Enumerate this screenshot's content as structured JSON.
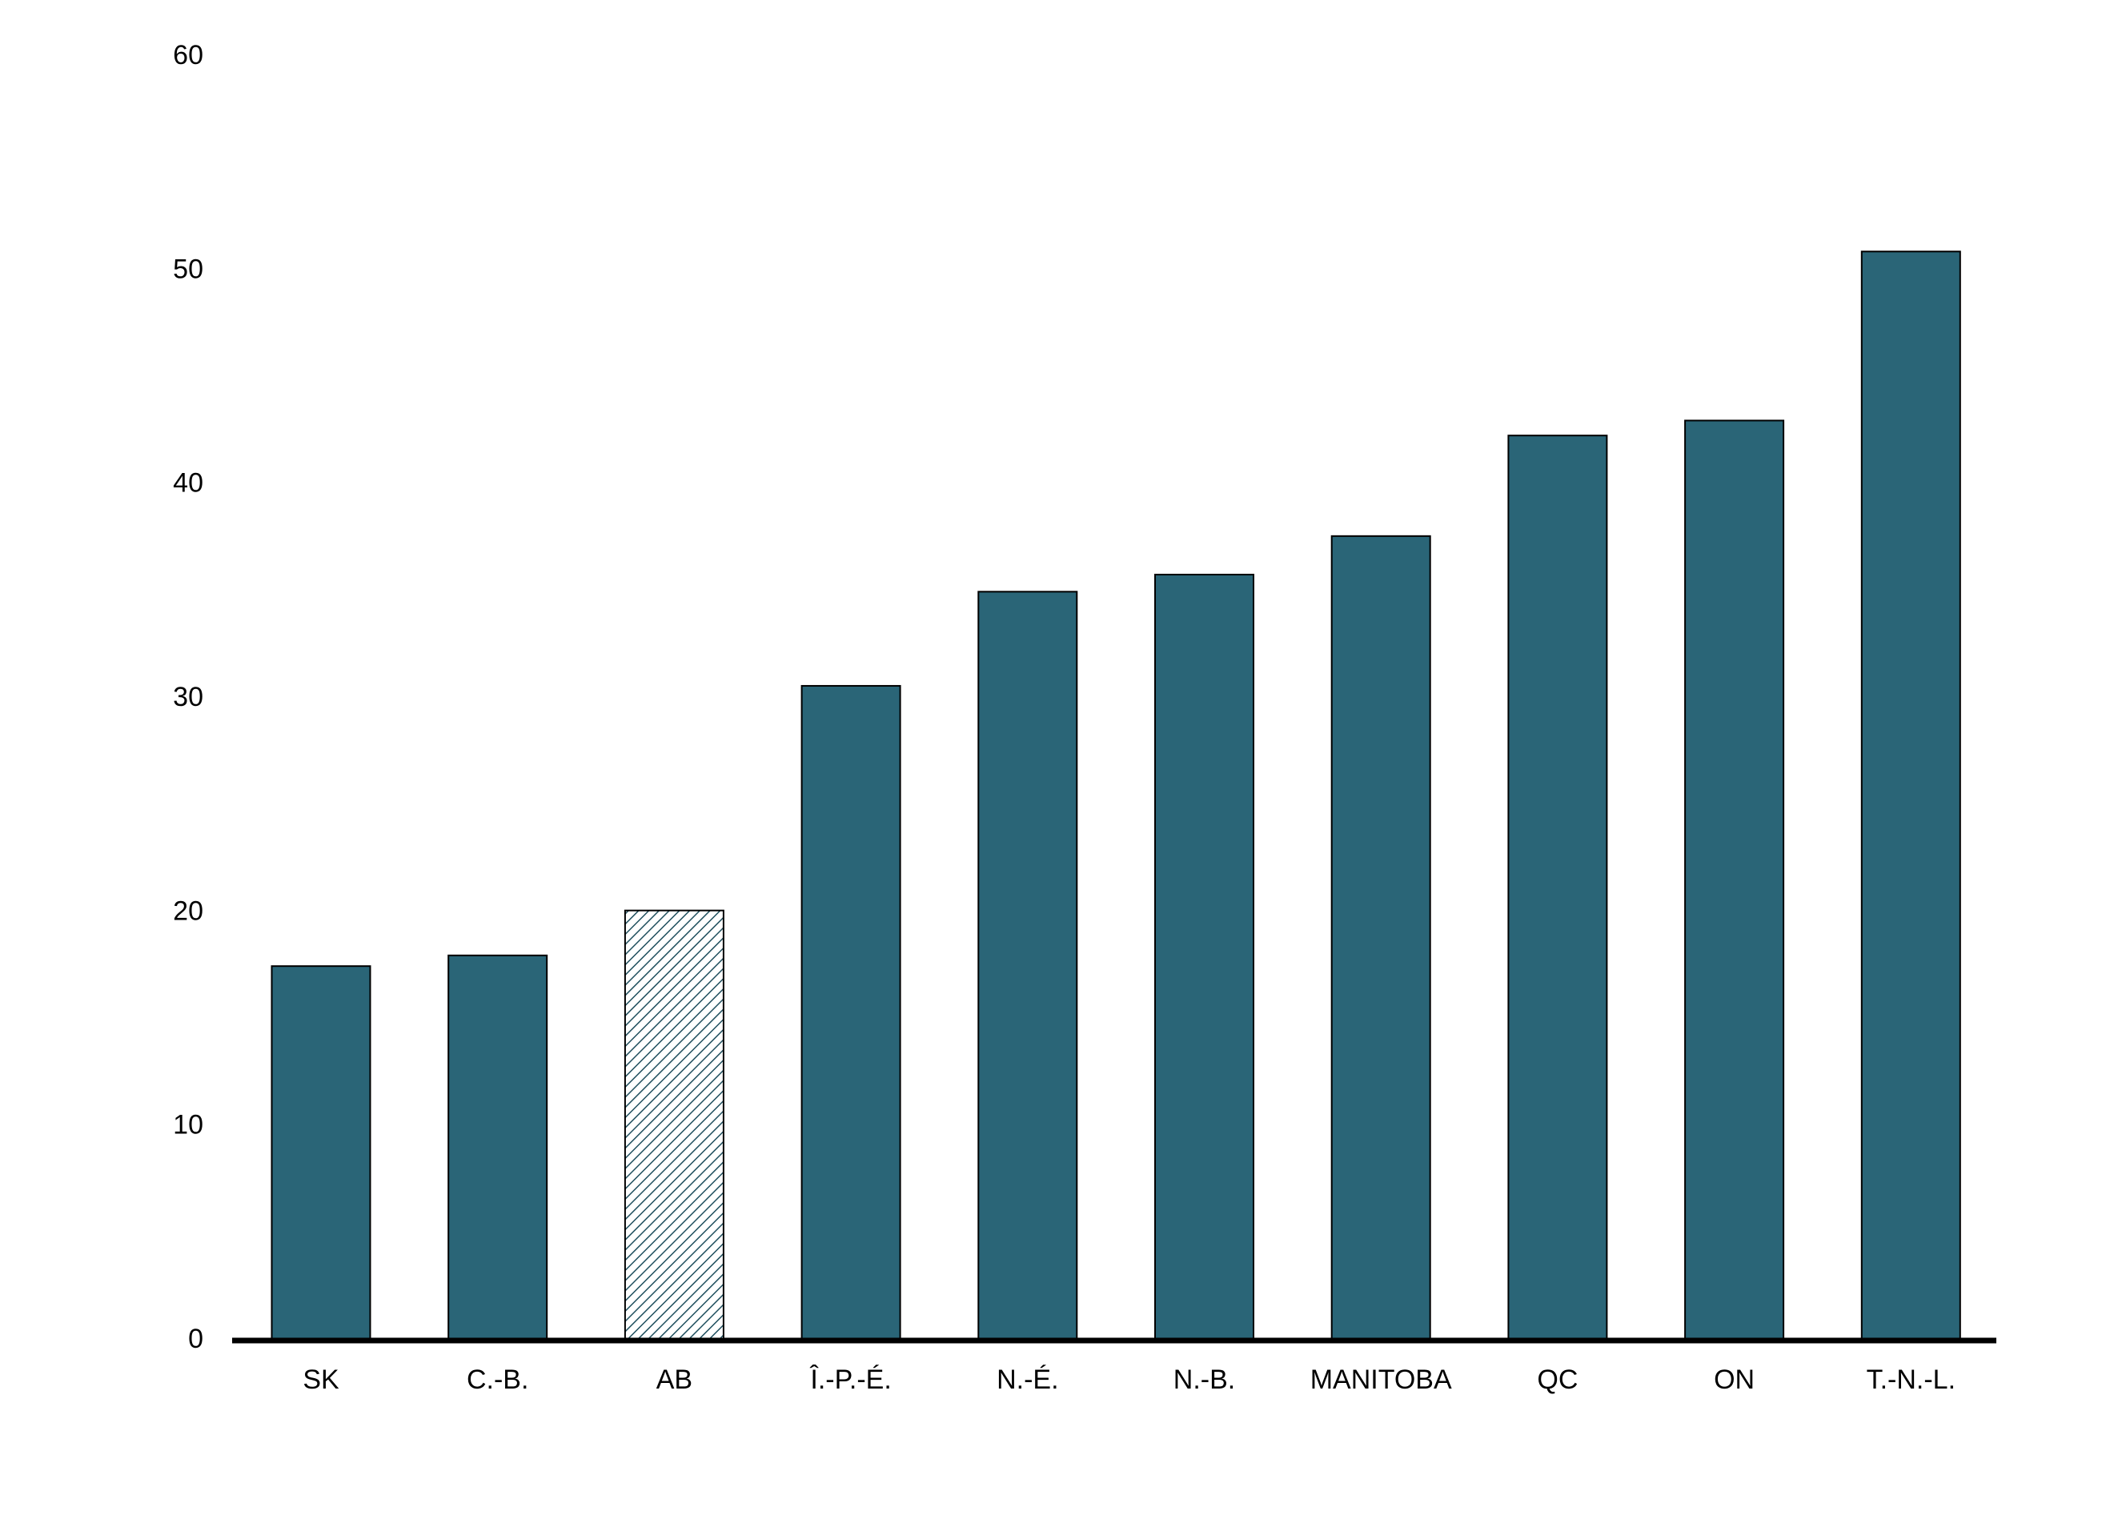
{
  "chart_data": {
    "type": "bar",
    "categories": [
      "SK",
      "C.-B.",
      "AB",
      "Î.-P.-É.",
      "N.-É.",
      "N.-B.",
      "MANITOBA",
      "QC",
      "ON",
      "T.-N.-L."
    ],
    "values": [
      17.5,
      18.0,
      20.1,
      30.6,
      35.0,
      35.8,
      37.6,
      42.3,
      43.0,
      50.9
    ],
    "bar_styles": [
      "solid",
      "solid",
      "hatched",
      "solid",
      "solid",
      "solid",
      "solid",
      "solid",
      "solid",
      "solid"
    ],
    "color": "#2a6577",
    "ylim": [
      0,
      60
    ],
    "yticks": [
      0,
      10,
      20,
      30,
      40,
      50,
      60
    ],
    "grid": false
  }
}
